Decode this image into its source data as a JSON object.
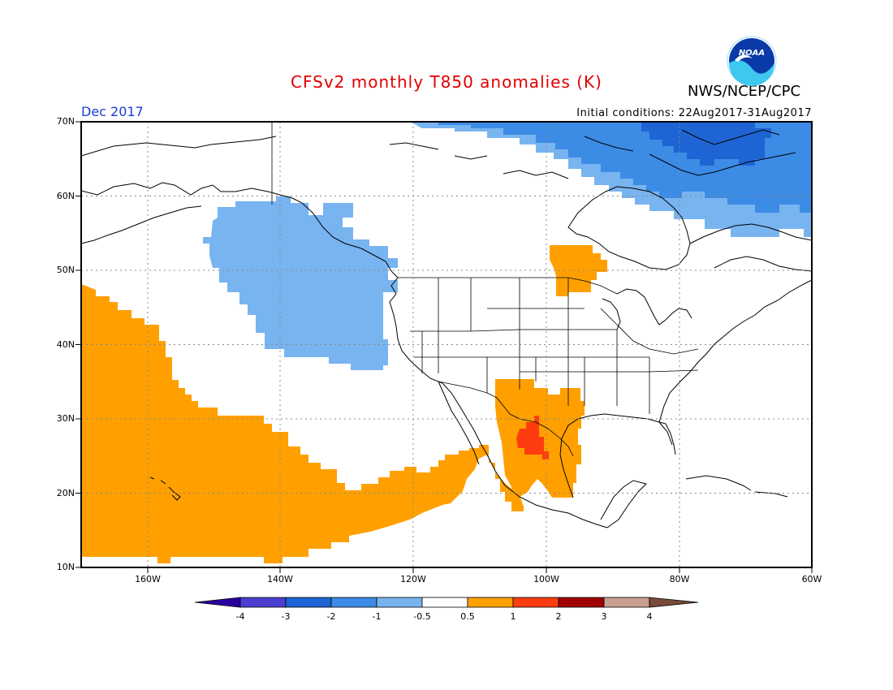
{
  "title": "CFSv2 monthly T850 anomalies (K)",
  "organization": "NWS/NCEP/CPC",
  "logo_text": "NOAA",
  "month": "Dec 2017",
  "initial_conditions": "Initial conditions: 22Aug2017-31Aug2017",
  "lat_labels": [
    "70N",
    "60N",
    "50N",
    "40N",
    "30N",
    "20N",
    "10N"
  ],
  "lon_labels": [
    "160W",
    "140W",
    "120W",
    "100W",
    "80W",
    "60W"
  ],
  "colorbar": {
    "labels": [
      "-4",
      "-3",
      "-2",
      "-1",
      "-0.5",
      "0.5",
      "1",
      "2",
      "3",
      "4"
    ],
    "colors": [
      "#2a00a0",
      "#4b3fd0",
      "#1e64d4",
      "#3c8ce6",
      "#78b4f0",
      "#ffffff",
      "#ffa000",
      "#ff3c10",
      "#a00000",
      "#c8a090",
      "#7a4a3a"
    ]
  },
  "colors": {
    "title": "#e00000",
    "month": "#1a3cd6",
    "neg_light": "#78b4f0",
    "neg_med": "#3c8ce6",
    "neg_dark": "#1e64d4",
    "pos_orange": "#ffa000",
    "pos_red": "#ff3c10"
  }
}
